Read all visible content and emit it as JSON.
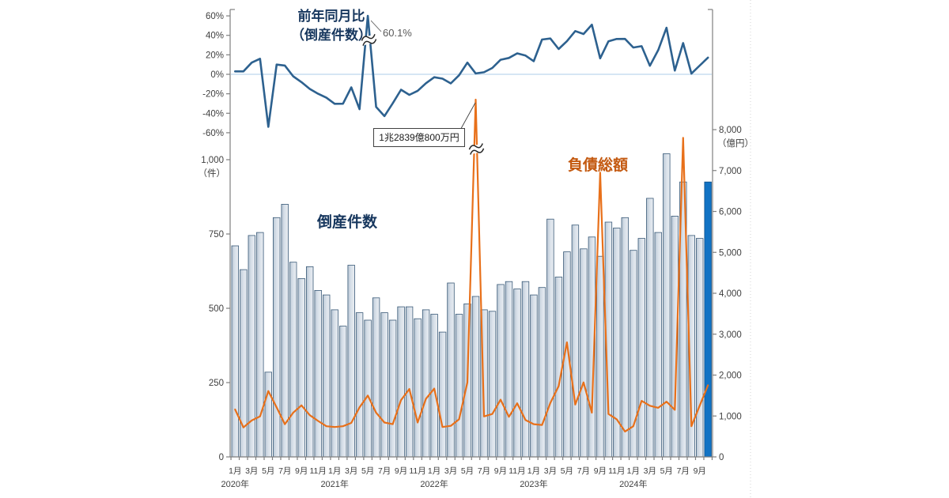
{
  "labels": {
    "yoy_line1": "前年同月比",
    "yoy_line2": "（倒産件数）",
    "yoy_peak": "60.1%",
    "bars": "倒産件数",
    "liabilities": "負債総額",
    "liabilities_peak": "1兆2839億800万円"
  },
  "chart_data": {
    "type": "combo (bar + 2 lines, broken-axis spikes)",
    "x_start": "2020-01",
    "x_end": "2024-10",
    "x_month_count": 58,
    "x_axis_years": [
      {
        "label": "2020年",
        "months": [
          "1月",
          "3月",
          "5月",
          "7月",
          "9月",
          "11月"
        ]
      },
      {
        "label": "2021年",
        "months": [
          "1月",
          "3月",
          "5月",
          "7月",
          "9月",
          "11月"
        ]
      },
      {
        "label": "2022年",
        "months": [
          "1月",
          "3月",
          "5月",
          "7月",
          "9月",
          "11月"
        ]
      },
      {
        "label": "2023年",
        "months": [
          "1月",
          "3月",
          "5月",
          "7月",
          "9月",
          "11月"
        ]
      },
      {
        "label": "2024年",
        "months": [
          "1月",
          "3月",
          "5月",
          "7月",
          "9月"
        ]
      }
    ],
    "top_axis_percent": {
      "ticks": [
        {
          "label": "60%",
          "v": 60
        },
        {
          "label": "40%",
          "v": 40
        },
        {
          "label": "20%",
          "v": 20
        },
        {
          "label": "0%",
          "v": 0
        },
        {
          "label": "-20%",
          "v": -20
        },
        {
          "label": "-40%",
          "v": -40
        },
        {
          "label": "-60%",
          "v": -60
        }
      ],
      "zero_line": true
    },
    "left_axis_count": {
      "unit": "（件）",
      "ticks": [
        {
          "label": "1,000",
          "v": 1000
        },
        {
          "label": "750",
          "v": 750
        },
        {
          "label": "500",
          "v": 500
        },
        {
          "label": "250",
          "v": 250
        },
        {
          "label": "0",
          "v": 0
        }
      ]
    },
    "right_axis_oku_yen": {
      "unit": "（億円）",
      "ticks": [
        {
          "label": "8,000",
          "v": 8000
        },
        {
          "label": "7,000",
          "v": 7000
        },
        {
          "label": "6,000",
          "v": 6000
        },
        {
          "label": "5,000",
          "v": 5000
        },
        {
          "label": "4,000",
          "v": 4000
        },
        {
          "label": "3,000",
          "v": 3000
        },
        {
          "label": "2,000",
          "v": 2000
        },
        {
          "label": "1,000",
          "v": 1000
        },
        {
          "label": "0",
          "v": 0
        }
      ]
    },
    "bar_series": {
      "name": "倒産件数",
      "unit": "件",
      "highlight_last_bar": true,
      "values": [
        710,
        630,
        745,
        755,
        285,
        805,
        850,
        655,
        600,
        640,
        560,
        545,
        495,
        440,
        645,
        485,
        460,
        535,
        485,
        460,
        505,
        505,
        465,
        495,
        480,
        420,
        585,
        480,
        515,
        540,
        495,
        490,
        580,
        590,
        565,
        590,
        545,
        570,
        800,
        605,
        690,
        780,
        700,
        740,
        675,
        790,
        770,
        805,
        695,
        735,
        870,
        755,
        1020,
        810,
        925,
        745,
        735,
        925
      ]
    },
    "yoy_line": {
      "name": "前年同月比（倒産件数）",
      "unit": "%",
      "peak_index": 16,
      "peak_label": "60.1%",
      "axis_break_at_peak": true,
      "values": [
        3,
        3,
        12,
        16,
        -54,
        10,
        9,
        -2,
        -8,
        -15,
        -20,
        -24,
        -30.3,
        -30.2,
        -13.4,
        -35.8,
        60.1,
        -33.5,
        -42.9,
        -29.8,
        -15.8,
        -21.1,
        -17,
        -9.2,
        -3,
        -4.5,
        -9.3,
        -1,
        12,
        0.9,
        2.1,
        6.5,
        14.9,
        16.8,
        21.5,
        19.2,
        13.5,
        35.7,
        36.8,
        26,
        34,
        44.4,
        41.4,
        51,
        16.4,
        33.9,
        36.3,
        36.4,
        27.5,
        28.9,
        8.8,
        24.8,
        47.8,
        3.8,
        32.1,
        0.7,
        8.9,
        17.1
      ]
    },
    "liabilities_line": {
      "name": "負債総額",
      "unit": "億円",
      "peak_index": 29,
      "peak_label": "1兆2839億800万円",
      "axis_break_at_peak": true,
      "values": [
        1160,
        720,
        890,
        990,
        1610,
        1210,
        800,
        1080,
        1260,
        1020,
        880,
        750,
        730,
        750,
        830,
        1210,
        1500,
        1080,
        840,
        800,
        1390,
        1660,
        840,
        1420,
        1670,
        730,
        760,
        920,
        1820,
        12839,
        990,
        1050,
        1400,
        980,
        1310,
        900,
        800,
        780,
        1320,
        1730,
        2800,
        1280,
        1820,
        1080,
        6950,
        1050,
        920,
        620,
        750,
        1370,
        1250,
        1200,
        1350,
        1150,
        7800,
        750,
        1250,
        1750
      ]
    },
    "colors": {
      "bar_fill": "#d8e0e9",
      "bar_fill_dark": "#b7c5d3",
      "bar_edge": "#3a5a78",
      "bar_highlight": "#1273c4",
      "bar_highlight_edge": "#0d4e87",
      "yoy_line": "#2d618f",
      "liabilities_line": "#e8701a",
      "zero_line": "#bdd7ee",
      "spine": "#7f7f7f",
      "tick_text": "#404040",
      "annotation_text": "#595959"
    },
    "layout_hints": {
      "top_panel_percent_range": [
        -60,
        60
      ],
      "bottom_panel_count_range": [
        0,
        1000
      ],
      "right_panel_oku_range": [
        0,
        8000
      ],
      "grid": false,
      "legend": "inline text labels"
    }
  }
}
